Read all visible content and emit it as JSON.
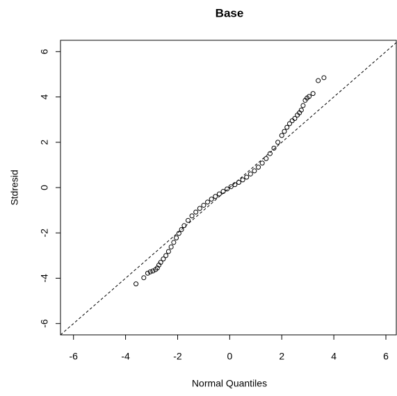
{
  "chart_data": {
    "type": "scatter",
    "title": "Base",
    "xlabel": "Normal Quantiles",
    "ylabel": "Stdresid",
    "x": [
      -3.6,
      -3.3,
      -3.15,
      -3.05,
      -2.95,
      -2.85,
      -2.78,
      -2.72,
      -2.65,
      -2.55,
      -2.45,
      -2.35,
      -2.25,
      -2.15,
      -2.05,
      -1.95,
      -1.85,
      -1.75,
      -1.6,
      -1.45,
      -1.3,
      -1.15,
      -1.0,
      -0.85,
      -0.7,
      -0.55,
      -0.4,
      -0.25,
      -0.1,
      0.05,
      0.2,
      0.35,
      0.5,
      0.65,
      0.8,
      0.95,
      1.1,
      1.25,
      1.4,
      1.55,
      1.7,
      1.85,
      2.0,
      2.1,
      2.2,
      2.3,
      2.4,
      2.5,
      2.6,
      2.68,
      2.75,
      2.82,
      2.9,
      2.97,
      3.05,
      3.2,
      3.4,
      3.62
    ],
    "y": [
      -4.25,
      -3.98,
      -3.78,
      -3.72,
      -3.68,
      -3.62,
      -3.55,
      -3.42,
      -3.3,
      -3.15,
      -3.0,
      -2.82,
      -2.62,
      -2.42,
      -2.22,
      -2.02,
      -1.85,
      -1.68,
      -1.45,
      -1.25,
      -1.08,
      -0.92,
      -0.78,
      -0.64,
      -0.51,
      -0.39,
      -0.28,
      -0.17,
      -0.06,
      0.04,
      0.13,
      0.23,
      0.34,
      0.46,
      0.6,
      0.74,
      0.9,
      1.08,
      1.28,
      1.5,
      1.74,
      2.0,
      2.3,
      2.48,
      2.66,
      2.82,
      2.95,
      3.05,
      3.2,
      3.3,
      3.42,
      3.62,
      3.85,
      3.95,
      4.02,
      4.15,
      4.72,
      4.85
    ],
    "color": "#000000",
    "reference_line": {
      "slope": 1,
      "intercept": 0
    },
    "xlim": [
      -6.5,
      6.4
    ],
    "ylim": [
      -6.5,
      6.5
    ],
    "xticks": [
      -6,
      -4,
      -2,
      0,
      2,
      4,
      6
    ],
    "yticks": [
      -6,
      -4,
      -2,
      0,
      2,
      4,
      6
    ],
    "grid": false
  }
}
